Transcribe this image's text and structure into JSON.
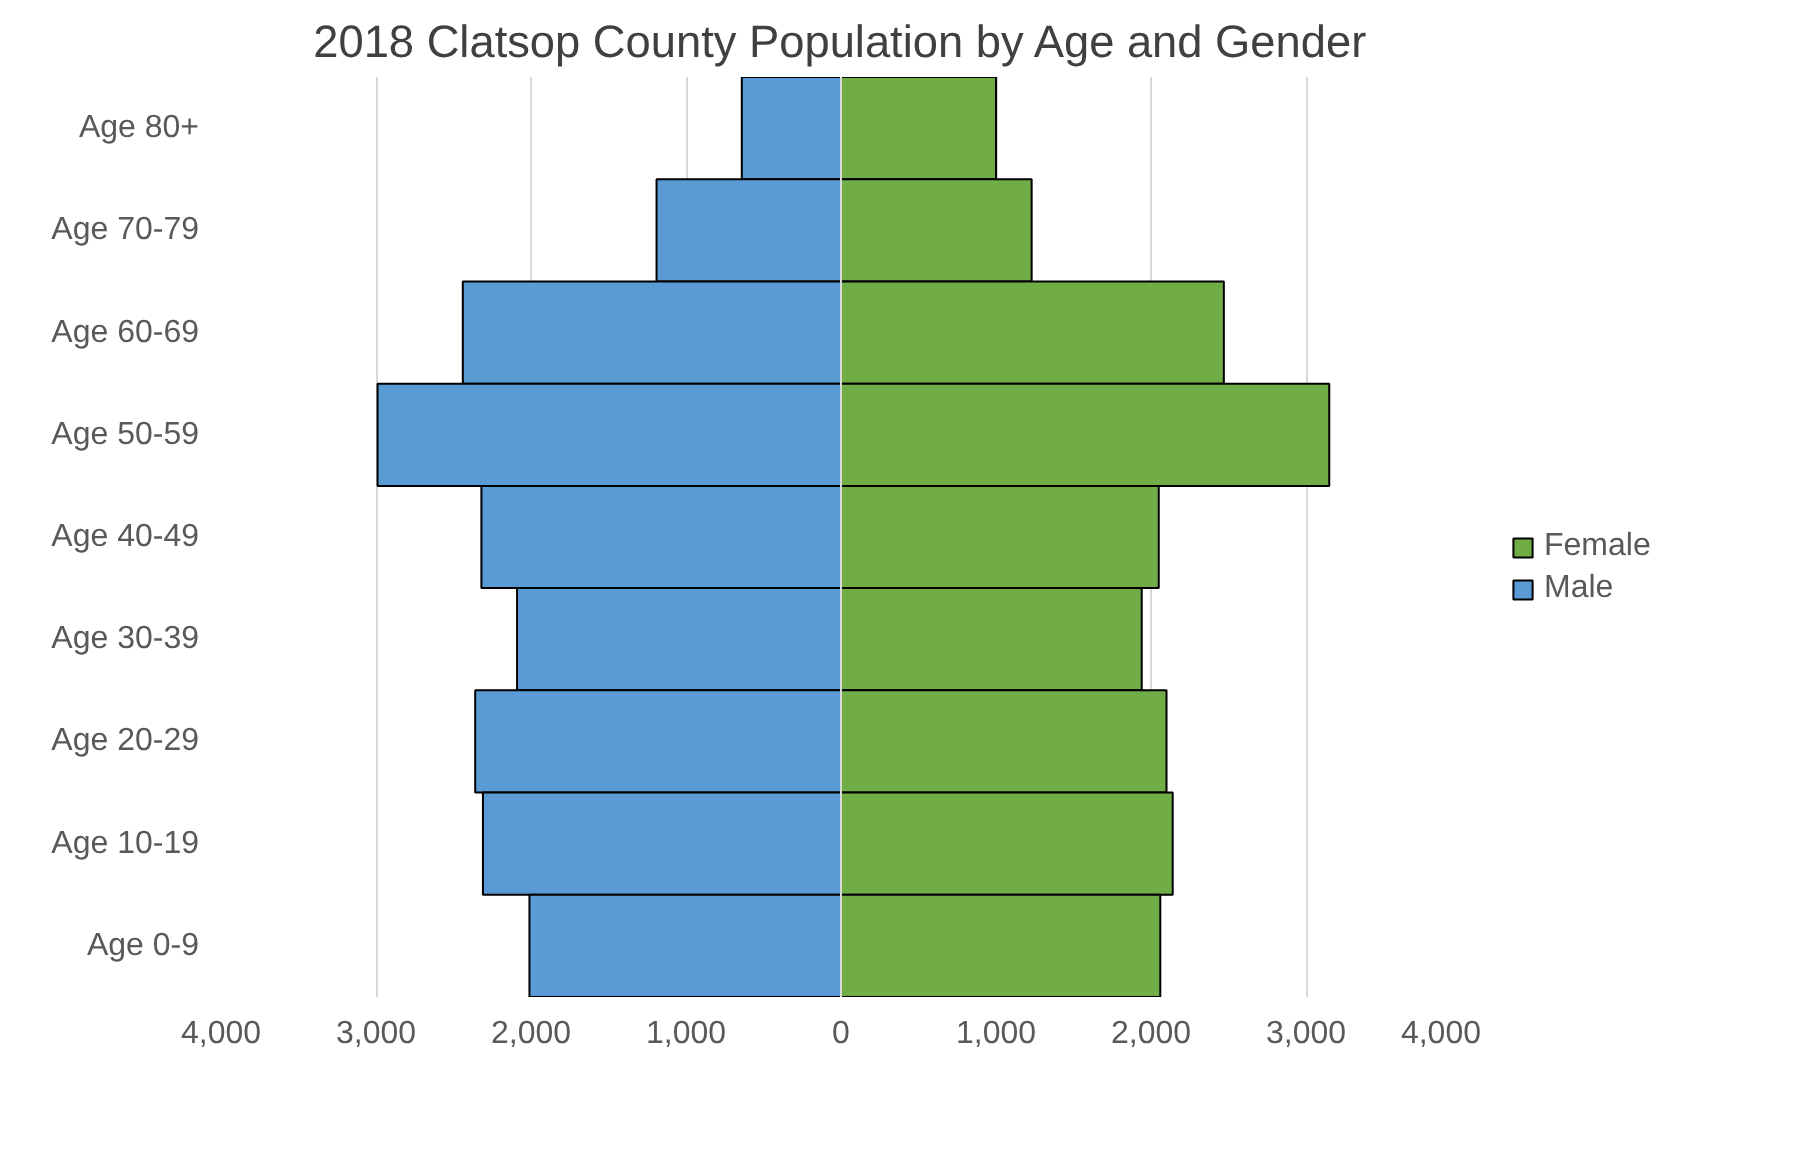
{
  "chart_data": {
    "type": "bar",
    "title": "2018 Clatsop County Population by Age and Gender",
    "orientation": "horizontal",
    "stacked": true,
    "categories": [
      "Age 80+",
      "Age 70-79",
      "Age 60-69",
      "Age 50-59",
      "Age 40-49",
      "Age 30-39",
      "Age 20-29",
      "Age 10-19",
      "Age 0-9"
    ],
    "series": [
      {
        "name": "Female",
        "color": "#70ad47",
        "values": [
          1000,
          1230,
          2470,
          3150,
          2050,
          1940,
          2100,
          2140,
          2060
        ]
      },
      {
        "name": "Male",
        "color": "#5b9bd5",
        "values": [
          -640,
          -1190,
          -2440,
          -2990,
          -2320,
          -2090,
          -2360,
          -2310,
          -2010
        ]
      }
    ],
    "xlim": [
      -4000,
      4000
    ],
    "xticks": [
      {
        "value": -4000,
        "label": "4,000"
      },
      {
        "value": -3000,
        "label": "3,000"
      },
      {
        "value": -2000,
        "label": "2,000"
      },
      {
        "value": -1000,
        "label": "1,000"
      },
      0,
      {
        "value": 1000,
        "label": "1,000"
      },
      {
        "value": 2000,
        "label": "2,000"
      },
      {
        "value": 3000,
        "label": "3,000"
      },
      {
        "value": 4000,
        "label": "4,000"
      }
    ],
    "grid": "x",
    "legend": "right"
  }
}
